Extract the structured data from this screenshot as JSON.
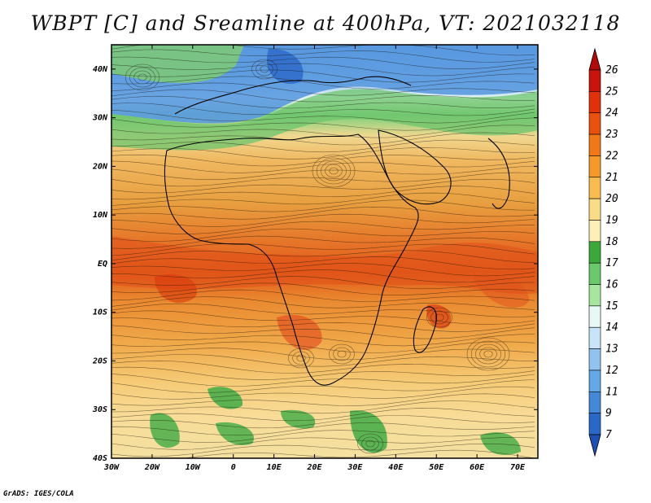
{
  "title": "WBPT [C] and Sreamline at 400hPa, VT: 2021032118",
  "credit": "GrADS: IGES/COLA",
  "map": {
    "lat_labels": [
      "40N",
      "30N",
      "20N",
      "10N",
      "EQ",
      "10S",
      "20S",
      "30S",
      "40S"
    ],
    "lon_labels": [
      "30W",
      "20W",
      "10W",
      "0",
      "10E",
      "20E",
      "30E",
      "40E",
      "50E",
      "60E",
      "70E"
    ],
    "lon_range": [
      -30,
      75
    ],
    "lat_range": [
      -40,
      45
    ],
    "field": "WBPT",
    "unit": "C",
    "level": "400hPa"
  },
  "colorbar": {
    "levels": [
      "26",
      "25",
      "24",
      "23",
      "22",
      "21",
      "20",
      "19",
      "18",
      "17",
      "16",
      "15",
      "14",
      "13",
      "12",
      "11",
      "9",
      "7"
    ],
    "colors": [
      "#b00a0a",
      "#c8140c",
      "#e0300c",
      "#ea5010",
      "#f07818",
      "#f59a2a",
      "#f8bc50",
      "#fadc88",
      "#fcf0b8",
      "#3ca83c",
      "#6cc86c",
      "#a8e6a0",
      "#e8f8f4",
      "#c8e4f8",
      "#90c4ee",
      "#64a8e6",
      "#4488d8",
      "#2a68c8",
      "#1e50b4"
    ]
  }
}
